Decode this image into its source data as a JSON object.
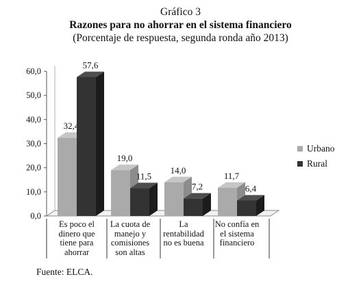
{
  "title": "Gráfico 3",
  "subtitle_1": "Razones para no ahorrar en el sistema financiero",
  "subtitle_2": "(Porcentaje de respuesta, segunda ronda año 2013)",
  "source": "Fuente: ELCA.",
  "colors": {
    "urbano": "#aaaaaa",
    "urbano_side": "#8c8c8c",
    "urbano_top": "#c6c6c6",
    "rural": "#333333",
    "rural_side": "#1c1c1c",
    "rural_top": "#4e4e4e"
  },
  "chart_data": {
    "type": "bar",
    "categories": [
      "Es poco el dinero que tiene para ahorrar",
      "La cuota de manejo y comisiones son altas",
      "La rentabilidad no es buena",
      "No confía en el sistema financiero"
    ],
    "category_lines": [
      [
        "Es poco el",
        "dinero que",
        "tiene para",
        "ahorrar"
      ],
      [
        "La cuota de",
        "manejo y",
        "comisiones",
        "son altas"
      ],
      [
        "La",
        "rentabilidad",
        "no es buena"
      ],
      [
        "No confía en",
        "el sistema",
        "financiero"
      ]
    ],
    "series": [
      {
        "name": "Urbano",
        "values": [
          32.4,
          19.0,
          14.0,
          11.7
        ],
        "labels": [
          "32,4",
          "19,0",
          "14,0",
          "11,7"
        ]
      },
      {
        "name": "Rural",
        "values": [
          57.6,
          11.5,
          7.2,
          6.4
        ],
        "labels": [
          "57,6",
          "11,5",
          "7,2",
          "6,4"
        ]
      }
    ],
    "ylim": [
      0,
      60
    ],
    "yticks": [
      "0,0",
      "10,0",
      "20,0",
      "30,0",
      "40,0",
      "50,0",
      "60,0"
    ],
    "legend": "right",
    "grid": false
  }
}
